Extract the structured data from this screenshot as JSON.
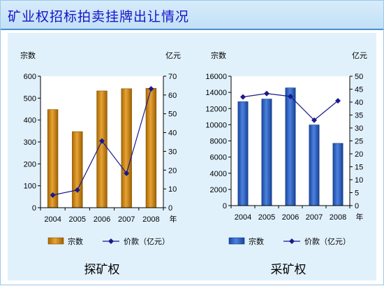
{
  "slide_title": "矿业权招标拍卖挂牌出让情况",
  "chart_data": [
    {
      "type": "bar",
      "caption": "探矿权",
      "categories": [
        "2004",
        "2005",
        "2006",
        "2007",
        "2008"
      ],
      "x_unit": "年",
      "series": [
        {
          "name": "宗数",
          "kind": "bar",
          "axis": "left",
          "values": [
            448,
            347,
            533,
            543,
            545
          ],
          "color": "#e08a00"
        },
        {
          "name": "价款（亿元）",
          "kind": "line",
          "axis": "right",
          "values": [
            6.7,
            9.4,
            35.5,
            18.3,
            63.3
          ],
          "color": "#1a1a8c"
        }
      ],
      "ylabel": "宗数",
      "ylim": [
        0,
        600
      ],
      "yticks": [
        0,
        100,
        200,
        300,
        400,
        500,
        600
      ],
      "y2label": "亿元",
      "y2lim": [
        0,
        70
      ],
      "y2ticks": [
        0,
        10,
        20,
        30,
        40,
        50,
        60,
        70
      ],
      "grid": false,
      "legend": "bottom"
    },
    {
      "type": "bar",
      "caption": "采矿权",
      "categories": [
        "2004",
        "2005",
        "2006",
        "2007",
        "2008"
      ],
      "x_unit": "年",
      "series": [
        {
          "name": "宗数",
          "kind": "bar",
          "axis": "left",
          "values": [
            12850,
            13180,
            14560,
            9980,
            7700
          ],
          "color": "#1f5fd6"
        },
        {
          "name": "价款（亿元）",
          "kind": "line",
          "axis": "right",
          "values": [
            42.0,
            43.3,
            42.2,
            33.0,
            40.5
          ],
          "color": "#1a1a8c"
        }
      ],
      "ylabel": "宗数",
      "ylim": [
        0,
        16000
      ],
      "yticks": [
        0,
        2000,
        4000,
        6000,
        8000,
        10000,
        12000,
        14000,
        16000
      ],
      "y2label": "亿元",
      "y2lim": [
        0,
        50
      ],
      "y2ticks": [
        0,
        5,
        10,
        15,
        20,
        25,
        30,
        35,
        40,
        45,
        50
      ],
      "grid": false,
      "legend": "bottom"
    }
  ]
}
